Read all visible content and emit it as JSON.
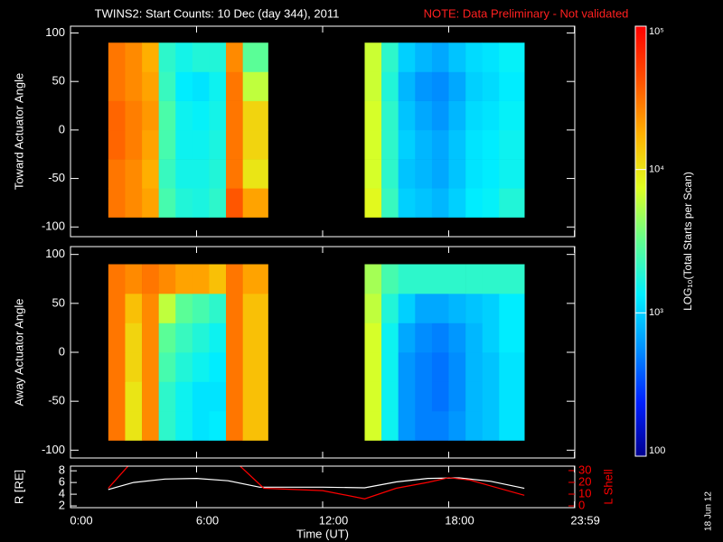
{
  "header": {
    "title": "TWINS2: Start Counts: 10 Dec (day 344), 2011",
    "note": "NOTE: Data Preliminary - Not validated"
  },
  "stamp": "18 Jun 12",
  "chart_data": [
    {
      "type": "heatmap",
      "ylabel": "Toward Actuator Angle",
      "xlim": [
        0,
        24
      ],
      "ylim": [
        -110,
        107
      ],
      "yticks": [
        -100,
        -50,
        0,
        50,
        100
      ],
      "x_bins": [
        1.8,
        2.6,
        3.4,
        4.2,
        5.0,
        5.8,
        6.6,
        7.4,
        8.2,
        9.4,
        14.0,
        14.8,
        15.6,
        16.4,
        17.2,
        18.0,
        18.8,
        19.6,
        20.4,
        21.6
      ],
      "y_bins": [
        -90,
        -60,
        -30,
        0,
        30,
        60,
        90
      ],
      "values": [
        [
          30000,
          25000,
          20000,
          2500,
          1800,
          1700,
          2000,
          40000,
          20000,
          null,
          8000,
          2200,
          1000,
          900,
          800,
          1000,
          1300,
          1400,
          1800
        ],
        [
          30000,
          25000,
          18000,
          2200,
          1600,
          1600,
          1800,
          30000,
          10000,
          null,
          7000,
          2000,
          900,
          800,
          700,
          900,
          1200,
          1300,
          1500
        ],
        [
          35000,
          28000,
          20000,
          2500,
          1500,
          1500,
          1700,
          30000,
          12000,
          null,
          7000,
          2000,
          1000,
          800,
          700,
          900,
          1200,
          1300,
          1500
        ],
        [
          35000,
          28000,
          22000,
          2600,
          1500,
          1400,
          1600,
          30000,
          12000,
          null,
          7000,
          2000,
          900,
          700,
          600,
          800,
          1100,
          1200,
          1400
        ],
        [
          30000,
          25000,
          20000,
          2200,
          1300,
          1200,
          1500,
          30000,
          6000,
          null,
          6500,
          1800,
          800,
          600,
          550,
          700,
          1000,
          1100,
          1300
        ],
        [
          30000,
          25000,
          18000,
          2000,
          1600,
          1800,
          1800,
          25000,
          3000,
          null,
          6500,
          2000,
          1000,
          800,
          700,
          900,
          1100,
          1200,
          1400
        ]
      ]
    },
    {
      "type": "heatmap",
      "ylabel": "Away Actuator Angle",
      "xlim": [
        0,
        24
      ],
      "ylim": [
        -108,
        108
      ],
      "yticks": [
        -100,
        -50,
        0,
        50,
        100
      ],
      "x_bins": [
        1.8,
        2.6,
        3.4,
        4.2,
        5.0,
        5.8,
        6.6,
        7.4,
        8.2,
        9.4,
        14.0,
        14.8,
        15.6,
        16.4,
        17.2,
        18.0,
        18.8,
        19.6,
        20.4,
        21.6
      ],
      "y_bins": [
        -90,
        -60,
        -30,
        0,
        30,
        60,
        90
      ],
      "values": [
        [
          30000,
          10000,
          25000,
          2000,
          1500,
          1200,
          1300,
          30000,
          15000,
          null,
          7000,
          1500,
          600,
          500,
          500,
          600,
          800,
          900,
          1200
        ],
        [
          30000,
          10000,
          25000,
          2000,
          1500,
          1200,
          1200,
          30000,
          15000,
          null,
          7000,
          1500,
          600,
          500,
          450,
          550,
          800,
          900,
          1200
        ],
        [
          30000,
          12000,
          25000,
          2500,
          1800,
          1500,
          1300,
          30000,
          15000,
          null,
          7000,
          1500,
          600,
          500,
          450,
          550,
          800,
          900,
          1200
        ],
        [
          30000,
          12000,
          25000,
          3000,
          2200,
          1800,
          1500,
          30000,
          15000,
          null,
          7000,
          1500,
          700,
          550,
          500,
          600,
          800,
          1000,
          1300
        ],
        [
          30000,
          15000,
          25000,
          6000,
          3000,
          2500,
          2000,
          30000,
          15000,
          null,
          6000,
          1800,
          1000,
          700,
          700,
          800,
          900,
          1000,
          1300
        ],
        [
          30000,
          25000,
          30000,
          25000,
          20000,
          20000,
          15000,
          30000,
          20000,
          null,
          5000,
          2500,
          2000,
          2000,
          2000,
          2000,
          2000,
          2000,
          2000
        ]
      ]
    },
    {
      "type": "line",
      "xlabel": "Time (UT)",
      "ylabel": "R [RE]",
      "y2label": "L Shell",
      "y2color": "#ff0000",
      "xlim": [
        0,
        24
      ],
      "xticks": [
        {
          "value": 0,
          "label": "0:00"
        },
        {
          "value": 6,
          "label": "6:00"
        },
        {
          "value": 12,
          "label": "12:00"
        },
        {
          "value": 18,
          "label": "18:00"
        },
        {
          "value": 23.983,
          "label": "23:59"
        }
      ],
      "ylim": [
        1.7,
        8.8
      ],
      "yticks": [
        2,
        4,
        6,
        8
      ],
      "y2lim": [
        -1.5,
        33.8
      ],
      "y2ticks": [
        0,
        10,
        20,
        30
      ],
      "series": [
        {
          "color": "#ffffff",
          "x": [
            1.8,
            3,
            4.5,
            6,
            7.5,
            9,
            12,
            14,
            15.5,
            17,
            18.5,
            20,
            21.6
          ],
          "values": [
            4.8,
            6,
            6.6,
            6.7,
            6.3,
            5.2,
            5.2,
            5.1,
            6.1,
            6.7,
            6.8,
            6.2,
            5.0
          ]
        },
        {
          "color": "#ff0000",
          "axis": "y2",
          "x": [
            1.8,
            2.8,
            5,
            8.0,
            9.2,
            12,
            14,
            15.5,
            17,
            18,
            19,
            20,
            21.6
          ],
          "values": [
            15,
            35,
            null,
            35,
            15,
            13,
            6,
            15,
            20,
            24,
            22,
            17,
            9
          ]
        }
      ]
    },
    {
      "type": "colorbar",
      "title": "LOG₁₀(Total Starts per Scan)",
      "clim": [
        100,
        100000
      ],
      "log": true,
      "colorscale": [
        "#000090",
        "#0020ff",
        "#0090ff",
        "#00f0ff",
        "#60ff90",
        "#e0ff20",
        "#ffb000",
        "#ff5000",
        "#ff0000"
      ],
      "cticks": [
        100,
        {
          "value": 1000,
          "label": "10³"
        },
        {
          "value": 10000,
          "label": "10⁴"
        },
        {
          "value": 100000,
          "label": "10⁵"
        }
      ]
    }
  ]
}
